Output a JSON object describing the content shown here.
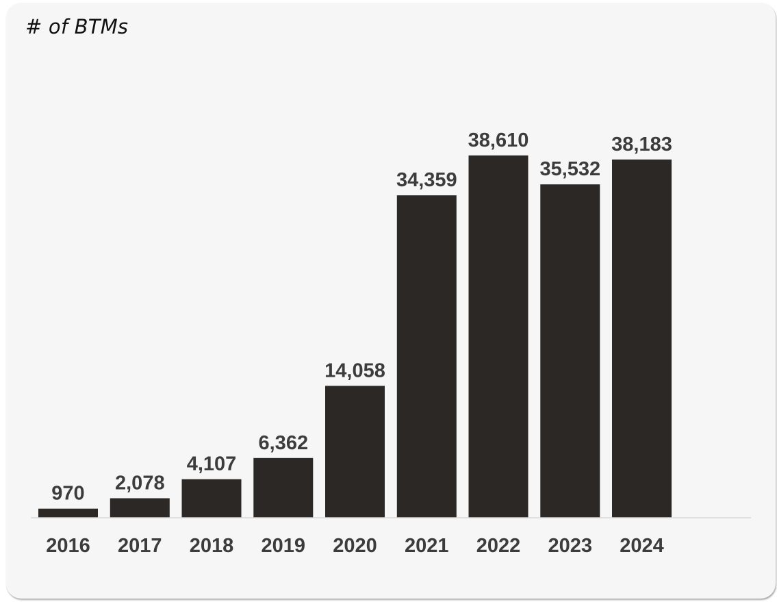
{
  "chart_data": {
    "type": "bar",
    "title": "# of BTMs",
    "categories": [
      "2016",
      "2017",
      "2018",
      "2019",
      "2020",
      "2021",
      "2022",
      "2023",
      "2024"
    ],
    "values": [
      970,
      2078,
      4107,
      6362,
      14058,
      34359,
      38610,
      35532,
      38183
    ],
    "value_labels": [
      "970",
      "2,078",
      "4,107",
      "6,362",
      "14,058",
      "34,359",
      "38,610",
      "35,532",
      "38,183"
    ],
    "xlabel": "",
    "ylabel": "",
    "ylim": [
      0,
      38610
    ],
    "grid": false,
    "legend": "none",
    "bar_color": "#2b2825",
    "label_color": "#3c3c3c",
    "axis_color": "#d9d9d9",
    "background_color": "#f6f6f6"
  }
}
